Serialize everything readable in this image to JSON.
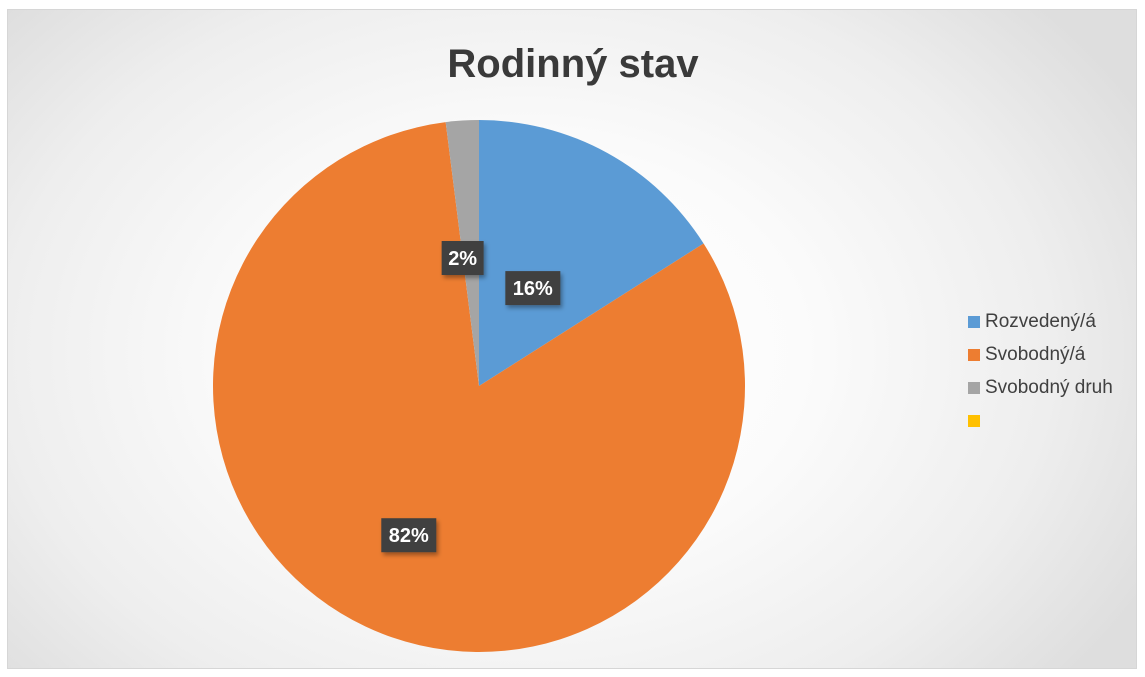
{
  "chart_data": {
    "type": "pie",
    "title": "Rodinný stav",
    "slices": [
      {
        "label": "Rozvedený/á",
        "value": 16,
        "display": "16%",
        "color": "#5b9bd5"
      },
      {
        "label": "Svobodný/á",
        "value": 82,
        "display": "82%",
        "color": "#ed7d31"
      },
      {
        "label": "Svobodný druh",
        "value": 2,
        "display": "2%",
        "color": "#a5a5a5"
      },
      {
        "label": "",
        "value": 0,
        "display": "",
        "color": "#ffc000"
      }
    ],
    "legend_position": "right",
    "data_label_style": "dark box with white bold text"
  }
}
